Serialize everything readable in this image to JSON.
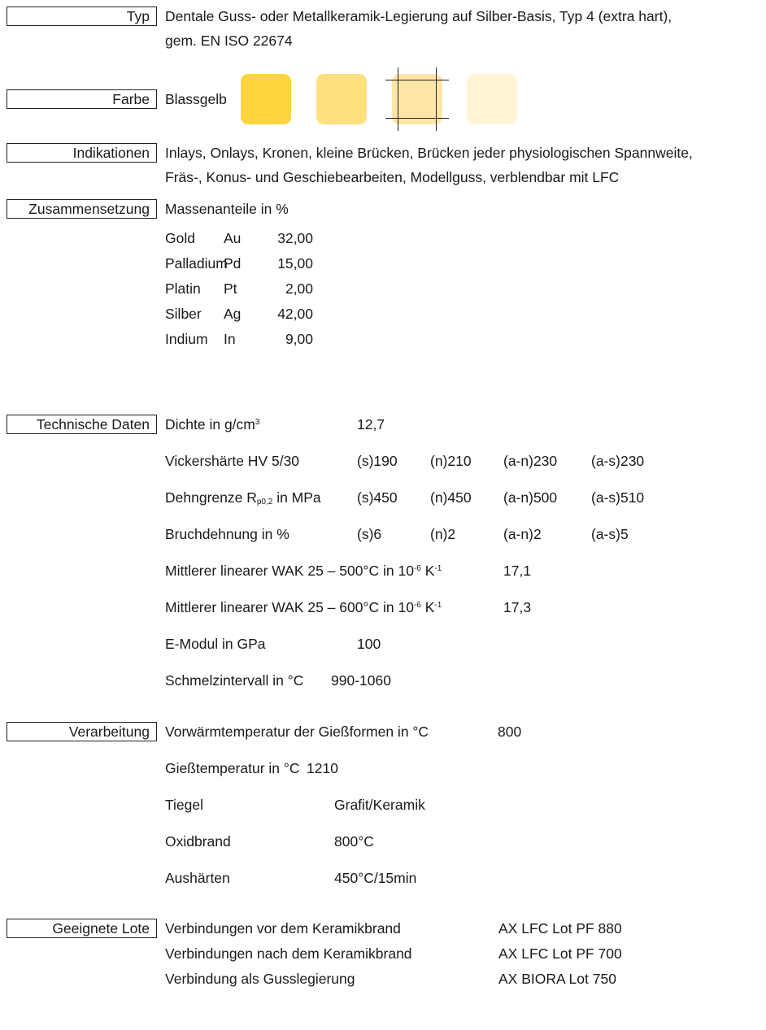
{
  "labels": {
    "typ": "Typ",
    "farbe": "Farbe",
    "indikationen": "Indikationen",
    "zusammensetzung": "Zusammensetzung",
    "technische_daten": "Technische Daten",
    "verarbeitung": "Verarbeitung",
    "geeignete_lote": "Geeignete Lote"
  },
  "typ": {
    "line1": "Dentale Guss- oder Metallkeramik-Legierung auf Silber-Basis, Typ 4 (extra hart),",
    "line2": "gem. EN ISO 22674"
  },
  "farbe": {
    "name": "Blassgelb",
    "swatches": [
      "#FFD43C",
      "#FFE07E",
      "#FFE6A8",
      "#FFF4D6"
    ]
  },
  "indikationen": {
    "line1": "Inlays, Onlays, Kronen, kleine Brücken, Brücken jeder physiologischen Spannweite,",
    "line2": "Fräs-, Konus- und Geschiebearbeiten, Modellguss, verblendbar mit LFC"
  },
  "zusammensetzung": {
    "header": "Massenanteile in %",
    "rows": [
      {
        "name": "Gold",
        "symbol": "Au",
        "value": "32,00"
      },
      {
        "name": "Palladium",
        "symbol": "Pd",
        "value": "15,00"
      },
      {
        "name": "Platin",
        "symbol": "Pt",
        "value": "2,00"
      },
      {
        "name": "Silber",
        "symbol": "Ag",
        "value": "42,00"
      },
      {
        "name": "Indium",
        "symbol": "In",
        "value": "9,00"
      }
    ]
  },
  "technische_daten": {
    "dichte": {
      "label_pre": "Dichte in g/cm",
      "label_sup": "3",
      "value": "12,7"
    },
    "vickers": {
      "label": "Vickershärte HV 5/30",
      "values": [
        "(s)190",
        "(n)210",
        "(a-n)230",
        "(a-s)230"
      ]
    },
    "dehngrenze": {
      "label_pre": "Dehngrenze R",
      "label_sub": "p0,2",
      "label_post": " in MPa",
      "values": [
        "(s)450",
        "(n)450",
        "(a-n)500",
        "(a-s)510"
      ]
    },
    "bruchdehnung": {
      "label": "Bruchdehnung in %",
      "values": [
        "(s)6",
        "(n)2",
        "(a-n)2",
        "(a-s)5"
      ]
    },
    "wak500": {
      "label_pre": "Mittlerer linearer WAK 25 – 500°C in 10",
      "sup1": "-6",
      "label_mid": " K",
      "sup2": "-1",
      "value": "17,1"
    },
    "wak600": {
      "label_pre": "Mittlerer linearer WAK 25 – 600°C in 10",
      "sup1": "-6",
      "label_mid": " K",
      "sup2": "-1",
      "value": "17,3"
    },
    "emodul": {
      "label": "E-Modul in GPa",
      "value": "100"
    },
    "schmelz": {
      "label": "Schmelzintervall in °C",
      "value": "990-1060"
    }
  },
  "verarbeitung": {
    "vorwaerm": {
      "label": "Vorwärmtemperatur der Gießformen in °C",
      "value": "800"
    },
    "giess": {
      "label": "Gießtemperatur in °C",
      "value": "1210"
    },
    "tiegel": {
      "label": "Tiegel",
      "value": "Grafit/Keramik"
    },
    "oxid": {
      "label": "Oxidbrand",
      "value": "800°C"
    },
    "aushaerten": {
      "label": "Aushärten",
      "value": "450°C/15min"
    }
  },
  "lote": {
    "rows": [
      {
        "label": "Verbindungen vor dem Keramikbrand",
        "value": "AX LFC Lot PF 880"
      },
      {
        "label": "Verbindungen nach dem Keramikbrand",
        "value": "AX LFC Lot PF 700"
      },
      {
        "label": "Verbindung als Gusslegierung",
        "value": "AX BIORA Lot 750"
      }
    ]
  }
}
